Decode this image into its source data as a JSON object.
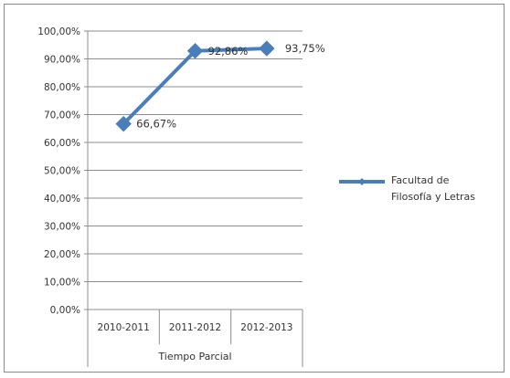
{
  "chart_data": {
    "type": "line",
    "categories": [
      "2010-2011",
      "2011-2012",
      "2012-2013"
    ],
    "category_group_label": "Tiempo Parcial",
    "series": [
      {
        "name": "Facultad de Filosofía y Letras",
        "name_lines": [
          "Facultad de",
          "Filosofía y Letras"
        ],
        "values": [
          66.67,
          92.86,
          93.75
        ],
        "data_labels": [
          "66,67%",
          "92,86%",
          "93,75%"
        ],
        "color": "#4a7ebb"
      }
    ],
    "y_ticks": [
      "0,00%",
      "10,00%",
      "20,00%",
      "30,00%",
      "40,00%",
      "50,00%",
      "60,00%",
      "70,00%",
      "80,00%",
      "90,00%",
      "100,00%"
    ],
    "ylim": [
      0,
      100
    ],
    "grid": true,
    "legend_position": "right",
    "colors": {
      "series": "#4a7ebb",
      "grid": "#8c8c8c",
      "axis": "#8c8c8c"
    }
  }
}
